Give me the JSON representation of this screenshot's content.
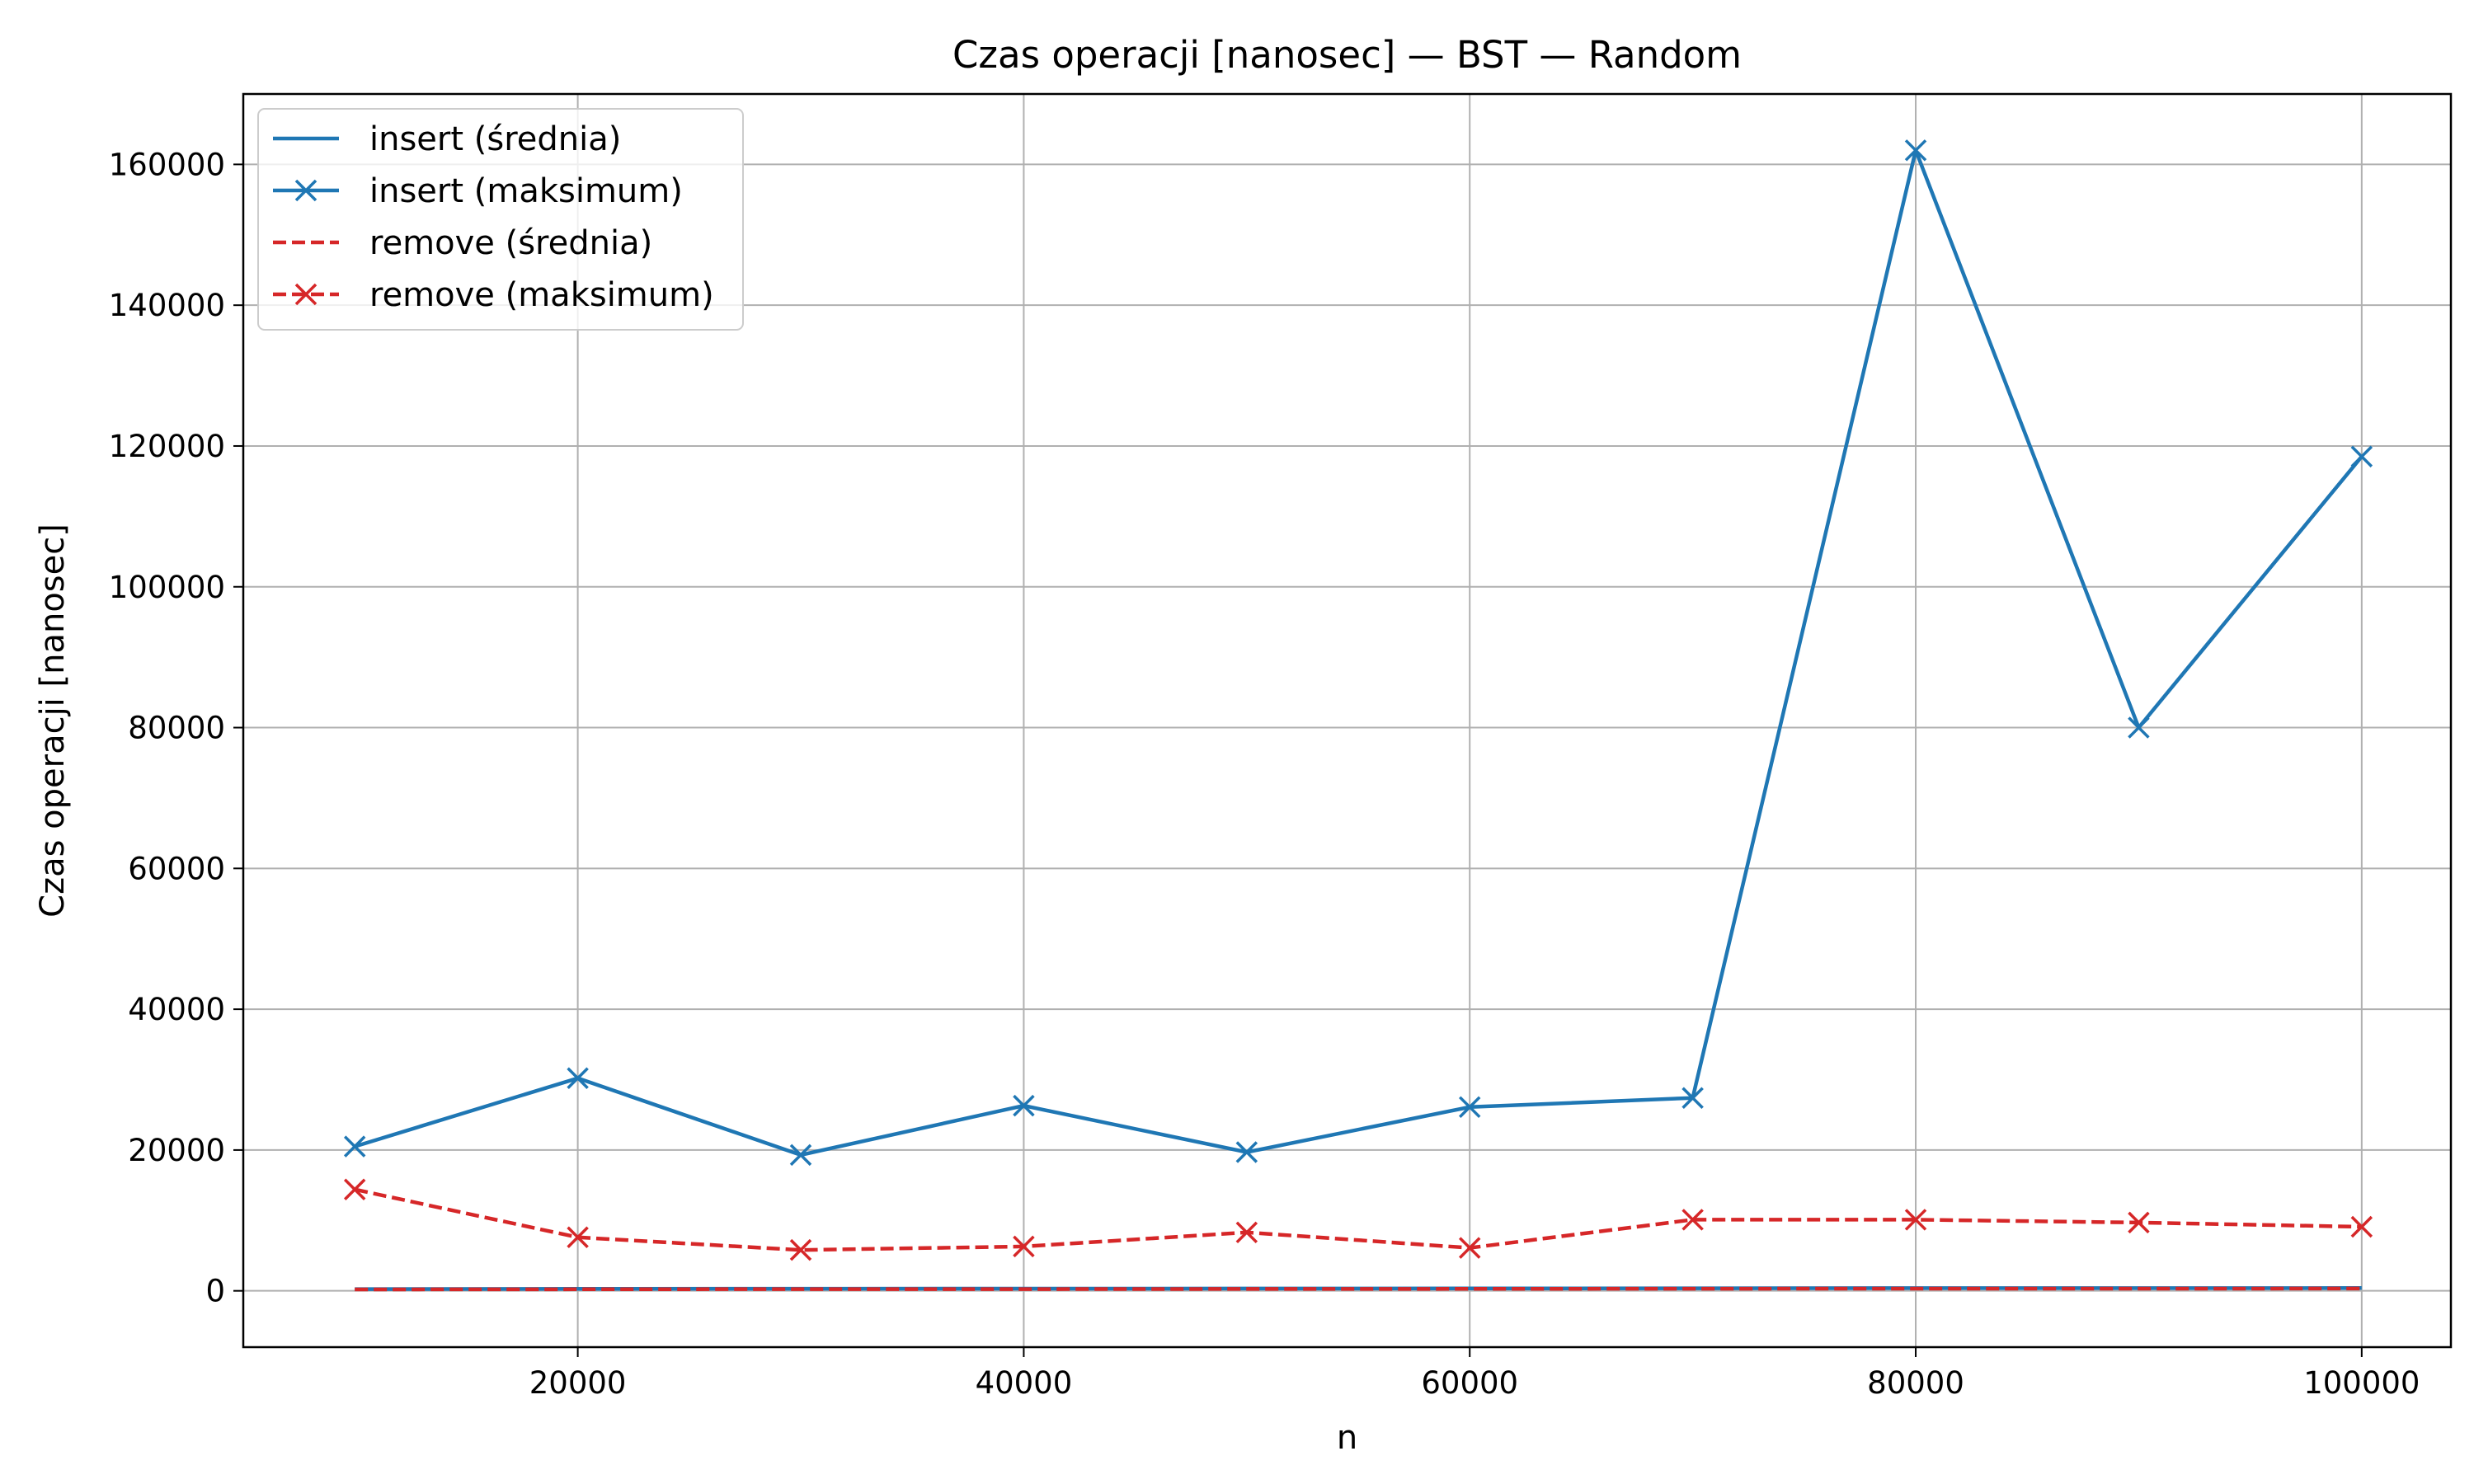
{
  "chart_data": {
    "type": "line",
    "title": "Czas operacji [nanosec] — BST — Random",
    "xlabel": "n",
    "ylabel": "Czas operacji [nanosec]",
    "x": [
      10000,
      20000,
      30000,
      40000,
      50000,
      60000,
      70000,
      80000,
      90000,
      100000
    ],
    "xlim": [
      5000,
      104000
    ],
    "ylim": [
      -8000,
      170000
    ],
    "xticks": [
      "20000",
      "40000",
      "60000",
      "80000",
      "100000"
    ],
    "yticks": [
      "0",
      "20000",
      "40000",
      "60000",
      "80000",
      "100000",
      "120000",
      "140000",
      "160000"
    ],
    "grid": true,
    "legend_position": "top-left",
    "series": [
      {
        "name": "insert (średnia)",
        "color": "#1f77b4",
        "linestyle": "solid",
        "marker": "none",
        "values": [
          250,
          280,
          300,
          320,
          330,
          340,
          360,
          380,
          390,
          400
        ]
      },
      {
        "name": "insert (maksimum)",
        "color": "#1f77b4",
        "linestyle": "solid",
        "marker": "x",
        "values": [
          20500,
          30200,
          19300,
          26300,
          19700,
          26100,
          27400,
          162000,
          80000,
          118500
        ]
      },
      {
        "name": "remove (średnia)",
        "color": "#d62728",
        "linestyle": "dashed",
        "marker": "none",
        "values": [
          200,
          220,
          240,
          250,
          270,
          280,
          300,
          310,
          320,
          330
        ]
      },
      {
        "name": "remove (maksimum)",
        "color": "#d62728",
        "linestyle": "dashed",
        "marker": "x",
        "values": [
          14400,
          7600,
          5800,
          6300,
          8300,
          6100,
          10100,
          10100,
          9700,
          9100
        ]
      }
    ]
  }
}
